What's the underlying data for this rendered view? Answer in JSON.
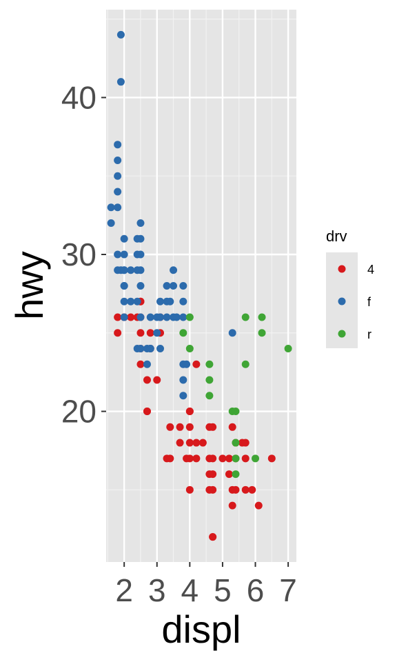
{
  "chart_data": {
    "type": "scatter",
    "xlabel": "displ",
    "ylabel": "hwy",
    "xlim": [
      1.45,
      7.25
    ],
    "ylim": [
      10.4,
      45.6
    ],
    "x_ticks": [
      2,
      3,
      4,
      5,
      6,
      7
    ],
    "y_ticks": [
      20,
      30,
      40
    ],
    "grid": true,
    "legend": {
      "title": "drv",
      "position": "right"
    },
    "colors": {
      "4": "#D7191C",
      "f": "#2C6BAC",
      "r": "#3FA535"
    },
    "series": [
      {
        "name": "4",
        "points": [
          [
            1.8,
            26
          ],
          [
            1.8,
            25
          ],
          [
            2.0,
            26
          ],
          [
            2.0,
            26
          ],
          [
            2.2,
            26
          ],
          [
            2.4,
            26
          ],
          [
            2.5,
            27
          ],
          [
            2.5,
            27
          ],
          [
            2.5,
            26
          ],
          [
            2.5,
            25
          ],
          [
            2.5,
            24
          ],
          [
            2.5,
            23
          ],
          [
            2.7,
            22
          ],
          [
            2.7,
            20
          ],
          [
            2.7,
            20
          ],
          [
            2.8,
            24
          ],
          [
            2.8,
            25
          ],
          [
            3.0,
            22
          ],
          [
            3.1,
            25
          ],
          [
            3.1,
            26
          ],
          [
            3.3,
            17
          ],
          [
            3.4,
            17
          ],
          [
            3.4,
            19
          ],
          [
            3.7,
            19
          ],
          [
            3.7,
            18
          ],
          [
            3.9,
            17
          ],
          [
            4.0,
            17
          ],
          [
            4.0,
            18
          ],
          [
            4.0,
            19
          ],
          [
            4.0,
            20
          ],
          [
            4.0,
            20
          ],
          [
            4.0,
            15
          ],
          [
            4.2,
            18
          ],
          [
            4.2,
            23
          ],
          [
            4.2,
            17
          ],
          [
            4.4,
            18
          ],
          [
            4.6,
            17
          ],
          [
            4.6,
            19
          ],
          [
            4.7,
            17
          ],
          [
            4.7,
            19
          ],
          [
            4.7,
            15
          ],
          [
            4.7,
            16
          ],
          [
            4.7,
            12
          ],
          [
            4.7,
            12
          ],
          [
            4.6,
            15
          ],
          [
            4.6,
            16
          ],
          [
            5.0,
            17
          ],
          [
            5.2,
            17
          ],
          [
            5.2,
            16
          ],
          [
            5.3,
            14
          ],
          [
            5.3,
            15
          ],
          [
            5.3,
            19
          ],
          [
            5.4,
            15
          ],
          [
            5.4,
            17
          ],
          [
            5.4,
            18
          ],
          [
            5.6,
            18
          ],
          [
            5.7,
            15
          ],
          [
            5.7,
            17
          ],
          [
            5.7,
            18
          ],
          [
            5.9,
            15
          ],
          [
            6.1,
            14
          ],
          [
            6.5,
            17
          ]
        ]
      },
      {
        "name": "f",
        "points": [
          [
            1.6,
            32
          ],
          [
            1.6,
            33
          ],
          [
            1.8,
            33
          ],
          [
            1.8,
            35
          ],
          [
            1.8,
            36
          ],
          [
            1.8,
            37
          ],
          [
            1.8,
            34
          ],
          [
            1.8,
            29
          ],
          [
            1.8,
            30
          ],
          [
            1.9,
            44
          ],
          [
            1.9,
            41
          ],
          [
            1.9,
            29
          ],
          [
            2.0,
            31
          ],
          [
            2.0,
            30
          ],
          [
            2.0,
            29
          ],
          [
            2.0,
            28
          ],
          [
            2.0,
            28
          ],
          [
            2.0,
            27
          ],
          [
            2.0,
            26
          ],
          [
            2.0,
            29
          ],
          [
            2.2,
            27
          ],
          [
            2.2,
            29
          ],
          [
            2.4,
            31
          ],
          [
            2.4,
            29
          ],
          [
            2.4,
            30
          ],
          [
            2.4,
            27
          ],
          [
            2.4,
            24
          ],
          [
            2.5,
            32
          ],
          [
            2.5,
            31
          ],
          [
            2.5,
            30
          ],
          [
            2.5,
            29
          ],
          [
            2.5,
            28
          ],
          [
            2.5,
            26
          ],
          [
            2.5,
            24
          ],
          [
            2.7,
            24
          ],
          [
            2.7,
            23
          ],
          [
            2.8,
            24
          ],
          [
            2.8,
            26
          ],
          [
            2.8,
            24
          ],
          [
            3.0,
            26
          ],
          [
            3.0,
            25
          ],
          [
            3.1,
            27
          ],
          [
            3.1,
            26
          ],
          [
            3.1,
            24
          ],
          [
            3.3,
            28
          ],
          [
            3.3,
            27
          ],
          [
            3.3,
            26
          ],
          [
            3.4,
            27
          ],
          [
            3.5,
            29
          ],
          [
            3.5,
            28
          ],
          [
            3.5,
            26
          ],
          [
            3.6,
            26
          ],
          [
            3.8,
            28
          ],
          [
            3.8,
            27
          ],
          [
            3.8,
            26
          ],
          [
            3.8,
            23
          ],
          [
            3.8,
            22
          ],
          [
            3.8,
            21
          ],
          [
            3.9,
            23
          ],
          [
            5.3,
            25
          ]
        ]
      },
      {
        "name": "r",
        "points": [
          [
            3.8,
            25
          ],
          [
            4.0,
            24
          ],
          [
            4.0,
            26
          ],
          [
            4.6,
            23
          ],
          [
            4.6,
            22
          ],
          [
            4.6,
            21
          ],
          [
            5.3,
            20
          ],
          [
            5.4,
            20
          ],
          [
            5.4,
            18
          ],
          [
            5.4,
            17
          ],
          [
            5.4,
            16
          ],
          [
            5.7,
            23
          ],
          [
            5.7,
            26
          ],
          [
            6.0,
            17
          ],
          [
            6.2,
            26
          ],
          [
            6.2,
            25
          ],
          [
            7.0,
            24
          ]
        ]
      }
    ]
  }
}
